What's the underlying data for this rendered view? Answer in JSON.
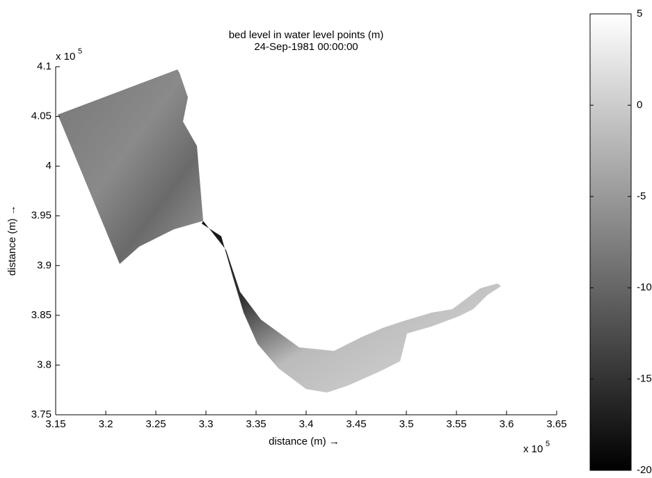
{
  "chart_data": {
    "type": "surface",
    "title": [
      "bed level in water level points (m)",
      "24-Sep-1981 00:00:00"
    ],
    "x_label": "distance (m) →",
    "y_label": "distance (m) →",
    "x_multiplier": {
      "base": "x 10",
      "power": 5
    },
    "y_multiplier": {
      "base": "x 10",
      "power": 5
    },
    "xlim": [
      3.15,
      3.65
    ],
    "xticks": [
      3.15,
      3.2,
      3.25,
      3.3,
      3.35,
      3.4,
      3.45,
      3.5,
      3.55,
      3.6,
      3.65
    ],
    "ylim": [
      3.75,
      4.1
    ],
    "yticks": [
      3.75,
      3.8,
      3.85,
      3.9,
      3.95,
      4,
      4.05,
      4.1
    ],
    "clim": [
      -20,
      5
    ],
    "cticks": [
      5,
      0,
      -5,
      -10,
      -15,
      -20
    ],
    "colormap": [
      "#000000",
      "#ffffff"
    ]
  }
}
